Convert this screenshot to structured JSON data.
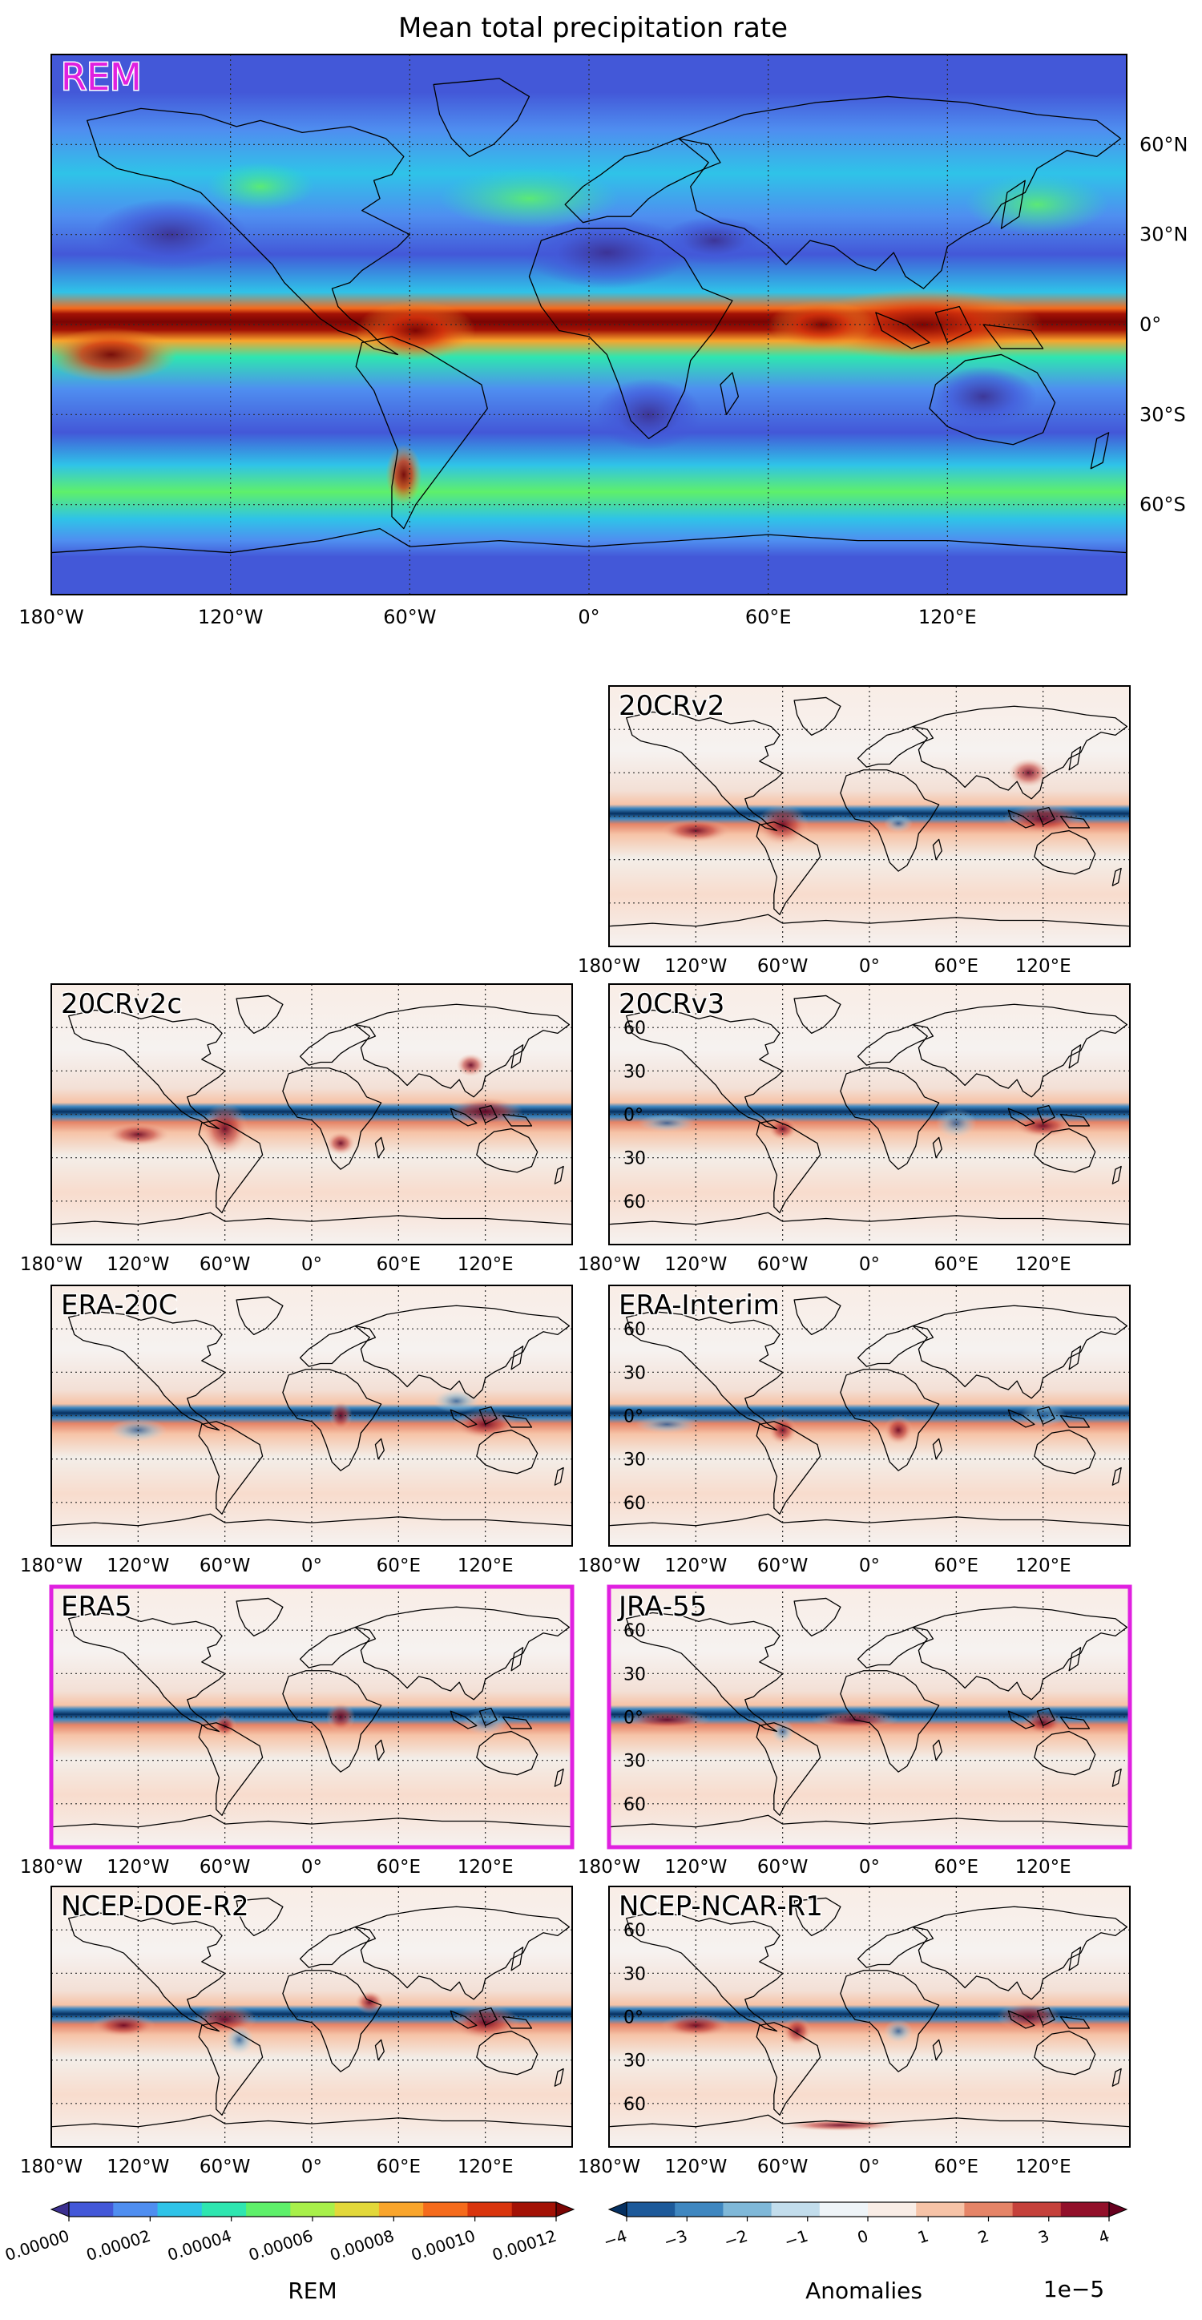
{
  "figure_title": "Mean total precipitation rate",
  "main_map": {
    "label": "REM",
    "lon_ticks": [
      "180°W",
      "120°W",
      "60°W",
      "0°",
      "60°E",
      "120°E"
    ],
    "lat_ticks": [
      "60°N",
      "30°N",
      "0°",
      "30°S",
      "60°S"
    ]
  },
  "panels": [
    {
      "label": "20CRv2",
      "highlight": false,
      "lat_ticks": []
    },
    {
      "label": "20CRv2c",
      "highlight": false,
      "lat_ticks": []
    },
    {
      "label": "20CRv3",
      "highlight": false,
      "lat_ticks": [
        "60",
        "30",
        "0°",
        "30",
        "60"
      ]
    },
    {
      "label": "ERA-20C",
      "highlight": false,
      "lat_ticks": []
    },
    {
      "label": "ERA-Interim",
      "highlight": false,
      "lat_ticks": [
        "60",
        "30",
        "0°",
        "30",
        "60"
      ]
    },
    {
      "label": "ERA5",
      "highlight": true,
      "lat_ticks": []
    },
    {
      "label": "JRA-55",
      "highlight": true,
      "lat_ticks": [
        "60",
        "30",
        "0°",
        "30",
        "60"
      ]
    },
    {
      "label": "NCEP-DOE-R2",
      "highlight": false,
      "lat_ticks": []
    },
    {
      "label": "NCEP-NCAR-R1",
      "highlight": false,
      "lat_ticks": [
        "60",
        "30",
        "0°",
        "30",
        "60"
      ]
    }
  ],
  "panel_lon_ticks": [
    "180°W",
    "120°W",
    "60°W",
    "0°",
    "60°E",
    "120°E"
  ],
  "colorbar_rem": {
    "label": "REM",
    "ticks": [
      "0.00000",
      "0.00002",
      "0.00004",
      "0.00006",
      "0.00008",
      "0.00010",
      "0.00012"
    ],
    "colors": [
      "#3b2f8f",
      "#4358d8",
      "#4f8ef0",
      "#2fc3e8",
      "#2ee6b0",
      "#5ef06a",
      "#a8f04a",
      "#e2d83a",
      "#f9a52c",
      "#f56b1c",
      "#d9350d",
      "#a31205",
      "#7a0403"
    ]
  },
  "colorbar_anom": {
    "label": "Anomalies",
    "exponent": "1e−5",
    "ticks": [
      "−4",
      "−3",
      "−2",
      "−1",
      "0",
      "1",
      "2",
      "3",
      "4"
    ],
    "colors": [
      "#053061",
      "#1d5a9a",
      "#3f87c0",
      "#7fb8d8",
      "#c2ddec",
      "#eef4f8",
      "#f9ede6",
      "#f6c3a7",
      "#e58467",
      "#c5413b",
      "#92102a",
      "#67001f"
    ]
  },
  "colors": {
    "highlight": "#e020e0",
    "land_outline": "#000000"
  }
}
